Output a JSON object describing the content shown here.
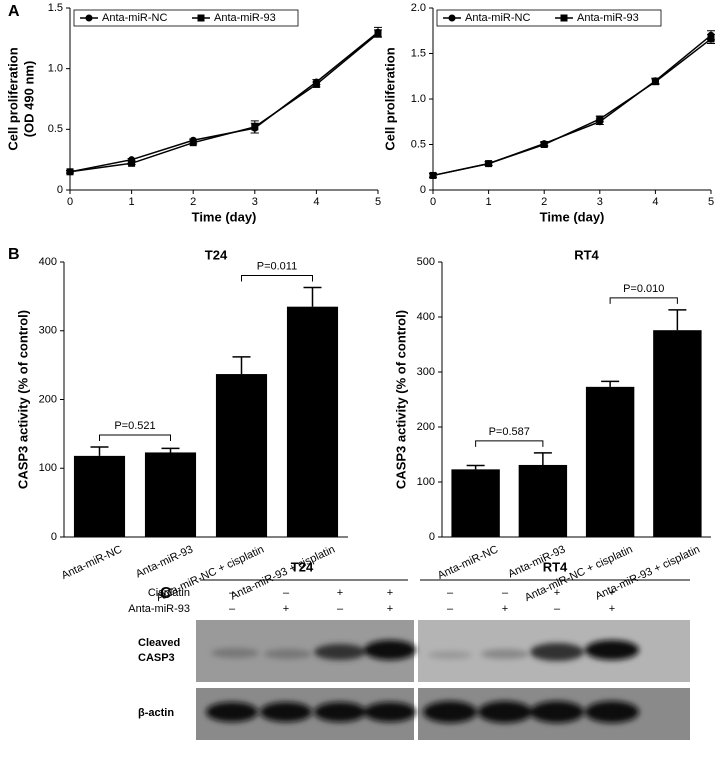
{
  "panel_labels": [
    "A",
    "B",
    "C"
  ],
  "chart_data": [
    {
      "type": "line",
      "xlabel": "Time (day)",
      "ylabel": [
        "Cell proliferation",
        "(OD 490 nm)"
      ],
      "x": [
        0,
        1,
        2,
        3,
        4,
        5
      ],
      "xlim": [
        0,
        5
      ],
      "xticks": [
        0,
        1,
        2,
        3,
        4,
        5
      ],
      "ylim": [
        0,
        1.5
      ],
      "yticks": [
        0,
        0.5,
        {
          "value": 1,
          "label": "1.0"
        },
        1.5
      ],
      "legend": "top-left",
      "series": [
        {
          "name": "Anta-miR-NC",
          "color": "#000000",
          "marker": "circle",
          "values": [
            0.15,
            0.25,
            0.41,
            0.51,
            0.89,
            1.3
          ],
          "errors": [
            0.01,
            0.01,
            0.01,
            0.04,
            0.02,
            0.04
          ]
        },
        {
          "name": "Anta-miR-93",
          "color": "#000000",
          "marker": "square",
          "values": [
            0.15,
            0.22,
            0.39,
            0.52,
            0.87,
            1.29
          ],
          "errors": [
            0.01,
            0.01,
            0.01,
            0.05,
            0.02,
            0.03
          ]
        }
      ]
    },
    {
      "type": "line",
      "xlabel": "Time (day)",
      "ylabel": [
        "Cell proliferation"
      ],
      "x": [
        0,
        1,
        2,
        3,
        4,
        5
      ],
      "xlim": [
        0,
        5
      ],
      "xticks": [
        0,
        1,
        2,
        3,
        4,
        5
      ],
      "ylim": [
        0,
        2
      ],
      "yticks": [
        0,
        0.5,
        {
          "value": 1,
          "label": "1.0"
        },
        1.5,
        {
          "value": 2,
          "label": "2.0"
        }
      ],
      "legend": "top-left",
      "series": [
        {
          "name": "Anta-miR-NC",
          "color": "#000000",
          "marker": "circle",
          "values": [
            0.16,
            0.29,
            0.51,
            0.75,
            1.2,
            1.7
          ],
          "errors": [
            0.02,
            0.02,
            0.02,
            0.03,
            0.03,
            0.05
          ]
        },
        {
          "name": "Anta-miR-93",
          "color": "#000000",
          "marker": "square",
          "values": [
            0.16,
            0.29,
            0.5,
            0.78,
            1.19,
            1.66
          ],
          "errors": [
            0.02,
            0.02,
            0.02,
            0.03,
            0.03,
            0.05
          ]
        }
      ]
    },
    {
      "type": "bar",
      "title": "T24",
      "ylabel": "CASP3 activity (% of control)",
      "categories": [
        "Anta-miR-NC",
        "Anta-miR-93",
        "Anta-miR-NC + cisplatin",
        "Anta-miR-93 + cisplatin"
      ],
      "values": [
        118,
        123,
        237,
        335
      ],
      "errors": [
        13,
        6,
        25,
        28
      ],
      "color": "#000000",
      "ylim": [
        0,
        400
      ],
      "yticks": [
        0,
        100,
        200,
        300,
        400
      ],
      "annotations": [
        {
          "text": "P=0.521",
          "from": 0,
          "to": 1
        },
        {
          "text": "P=0.011",
          "from": 2,
          "to": 3
        }
      ]
    },
    {
      "type": "bar",
      "title": "RT4",
      "ylabel": "CASP3 activity (% of control)",
      "categories": [
        "Anta-miR-NC",
        "Anta-miR-93",
        "Anta-miR-NC + cisplatin",
        "Anta-miR-93 + cisplatin"
      ],
      "values": [
        123,
        131,
        273,
        376
      ],
      "errors": [
        7,
        22,
        10,
        37
      ],
      "color": "#000000",
      "ylim": [
        0,
        500
      ],
      "yticks": [
        0,
        100,
        200,
        300,
        400,
        500
      ],
      "annotations": [
        {
          "text": "P=0.587",
          "from": 0,
          "to": 1
        },
        {
          "text": "P=0.010",
          "from": 2,
          "to": 3
        }
      ]
    }
  ],
  "blot": {
    "groups": [
      "T24",
      "RT4"
    ],
    "rows": [
      {
        "label": "Cisplatin",
        "signs": [
          "–",
          "–",
          "+",
          "+",
          "–",
          "–",
          "+",
          "+"
        ]
      },
      {
        "label": "Anta-miR-93",
        "signs": [
          "–",
          "+",
          "–",
          "+",
          "–",
          "+",
          "–",
          "+"
        ]
      }
    ],
    "bands": [
      [
        "Cleaved",
        "CASP3"
      ],
      [
        "β-actin"
      ]
    ]
  }
}
